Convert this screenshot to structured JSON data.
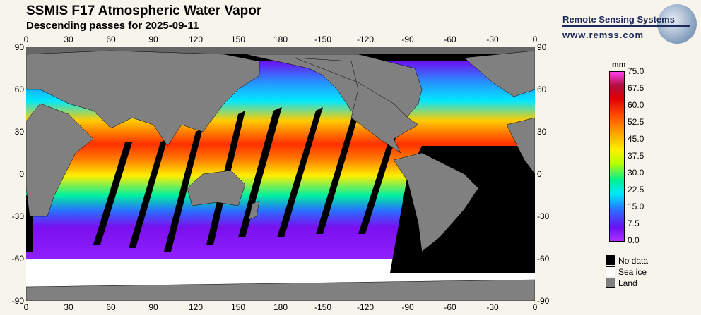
{
  "header": {
    "title": "SSMIS F17 Atmospheric Water Vapor",
    "subtitle": "Descending passes for 2025-09-11"
  },
  "logo": {
    "name": "Remote Sensing Systems",
    "url": "www.remss.com"
  },
  "axes": {
    "lon_labels": [
      "0",
      "30",
      "60",
      "90",
      "120",
      "150",
      "180",
      "-150",
      "-120",
      "-90",
      "-60",
      "-30",
      "0"
    ],
    "lat_labels": [
      "90",
      "60",
      "30",
      "0",
      "-30",
      "-60",
      "-90"
    ]
  },
  "colorbar": {
    "unit": "mm",
    "labels": [
      "75.0",
      "67.5",
      "60.0",
      "52.5",
      "45.0",
      "37.5",
      "30.0",
      "22.5",
      "15.0",
      "7.5",
      "0.0"
    ],
    "range": [
      0,
      75
    ]
  },
  "legend": [
    {
      "label": "No data",
      "color": "#000000"
    },
    {
      "label": "Sea ice",
      "color": "#ffffff"
    },
    {
      "label": "Land",
      "color": "#808080"
    }
  ]
}
